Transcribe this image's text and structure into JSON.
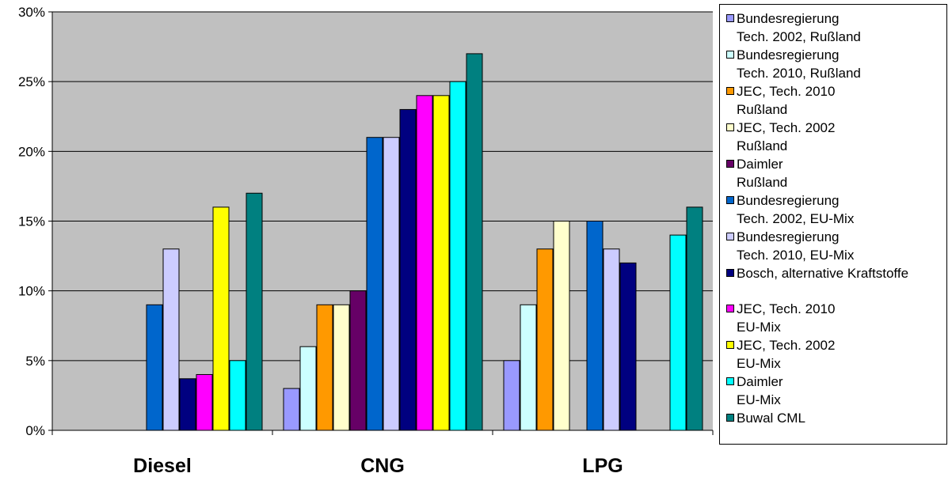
{
  "chart_data": {
    "type": "bar",
    "categories": [
      "Diesel",
      "CNG",
      "LPG"
    ],
    "ylim": [
      0,
      30
    ],
    "yticks": [
      "0%",
      "5%",
      "10%",
      "15%",
      "20%",
      "25%",
      "30%"
    ],
    "grid": true,
    "legend_position": "right",
    "series": [
      {
        "name": "Bundesregierung\nTech. 2002, Rußland",
        "color": "#9999ff",
        "values": [
          null,
          3,
          5
        ]
      },
      {
        "name": "Bundesregierung\nTech. 2010, Rußland",
        "color": "#ccffff",
        "values": [
          null,
          6,
          9
        ]
      },
      {
        "name": "JEC, Tech. 2010\nRußland",
        "color": "#ff9900",
        "values": [
          null,
          9,
          13
        ]
      },
      {
        "name": "JEC, Tech. 2002\nRußland",
        "color": "#ffffcc",
        "values": [
          null,
          9,
          15
        ]
      },
      {
        "name": "Daimler\nRußland",
        "color": "#660066",
        "values": [
          null,
          10,
          null
        ]
      },
      {
        "name": "Bundesregierung\nTech. 2002, EU-Mix",
        "color": "#0066cc",
        "values": [
          9,
          21,
          15
        ]
      },
      {
        "name": "Bundesregierung\nTech. 2010, EU-Mix",
        "color": "#ccccff",
        "values": [
          13,
          21,
          13
        ]
      },
      {
        "name": "Bosch, alternative Kraftstoffe",
        "color": "#000080",
        "values": [
          3.7,
          23,
          12
        ]
      },
      {
        "name": "JEC, Tech. 2010\nEU-Mix",
        "color": "#ff00ff",
        "values": [
          4,
          24,
          null
        ]
      },
      {
        "name": "JEC, Tech. 2002\nEU-Mix",
        "color": "#ffff00",
        "values": [
          16,
          24,
          null
        ]
      },
      {
        "name": "Daimler\nEU-Mix",
        "color": "#00ffff",
        "values": [
          5,
          25,
          14
        ]
      },
      {
        "name": "Buwal CML",
        "color": "#008080",
        "values": [
          17,
          27,
          16
        ]
      }
    ]
  }
}
